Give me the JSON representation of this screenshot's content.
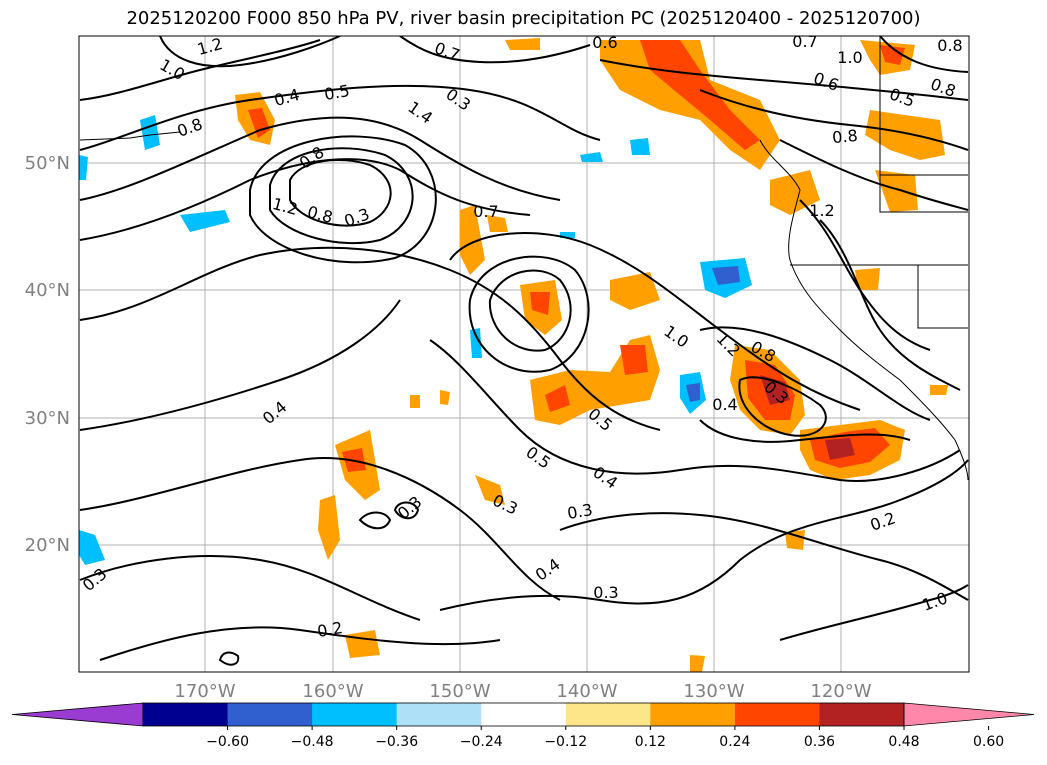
{
  "title": "2025120200 F000 850 hPa PV, river basin precipitation PC (2025120400 - 2025120700)",
  "map": {
    "lat_ticks": [
      "50°N",
      "40°N",
      "30°N",
      "20°N"
    ],
    "lon_ticks": [
      "170°W",
      "160°W",
      "150°W",
      "140°W",
      "130°W",
      "120°W"
    ],
    "contour_labels": [
      "1.2",
      "1.0",
      "0.8",
      "0.7",
      "0.6",
      "0.4",
      "0.5",
      "0.3",
      "1.4",
      "0.8",
      "1.2",
      "0.8",
      "0.3",
      "0.7",
      "1.0",
      "1.2",
      "0.8",
      "0.3",
      "0.4",
      "0.5",
      "0.5",
      "0.4",
      "0.3",
      "0.3",
      "0.3",
      "0.4",
      "0.2",
      "0.4",
      "0.3",
      "0.3",
      "0.2",
      "1.0",
      "0.8",
      "0.7",
      "0.6",
      "0.8",
      "1.2",
      "1.0",
      "0.8",
      "0.5"
    ]
  },
  "colorbar": {
    "labels": [
      "−0.60",
      "−0.48",
      "−0.36",
      "−0.24",
      "−0.12",
      "0.12",
      "0.24",
      "0.36",
      "0.48",
      "0.60"
    ],
    "colors": [
      "#9a3bd1",
      "#000090",
      "#3060d0",
      "#00bfff",
      "#aee0f8",
      "#ffffff",
      "#fde68a",
      "#ffa000",
      "#ff4500",
      "#b22222",
      "#ff88aa"
    ]
  }
}
